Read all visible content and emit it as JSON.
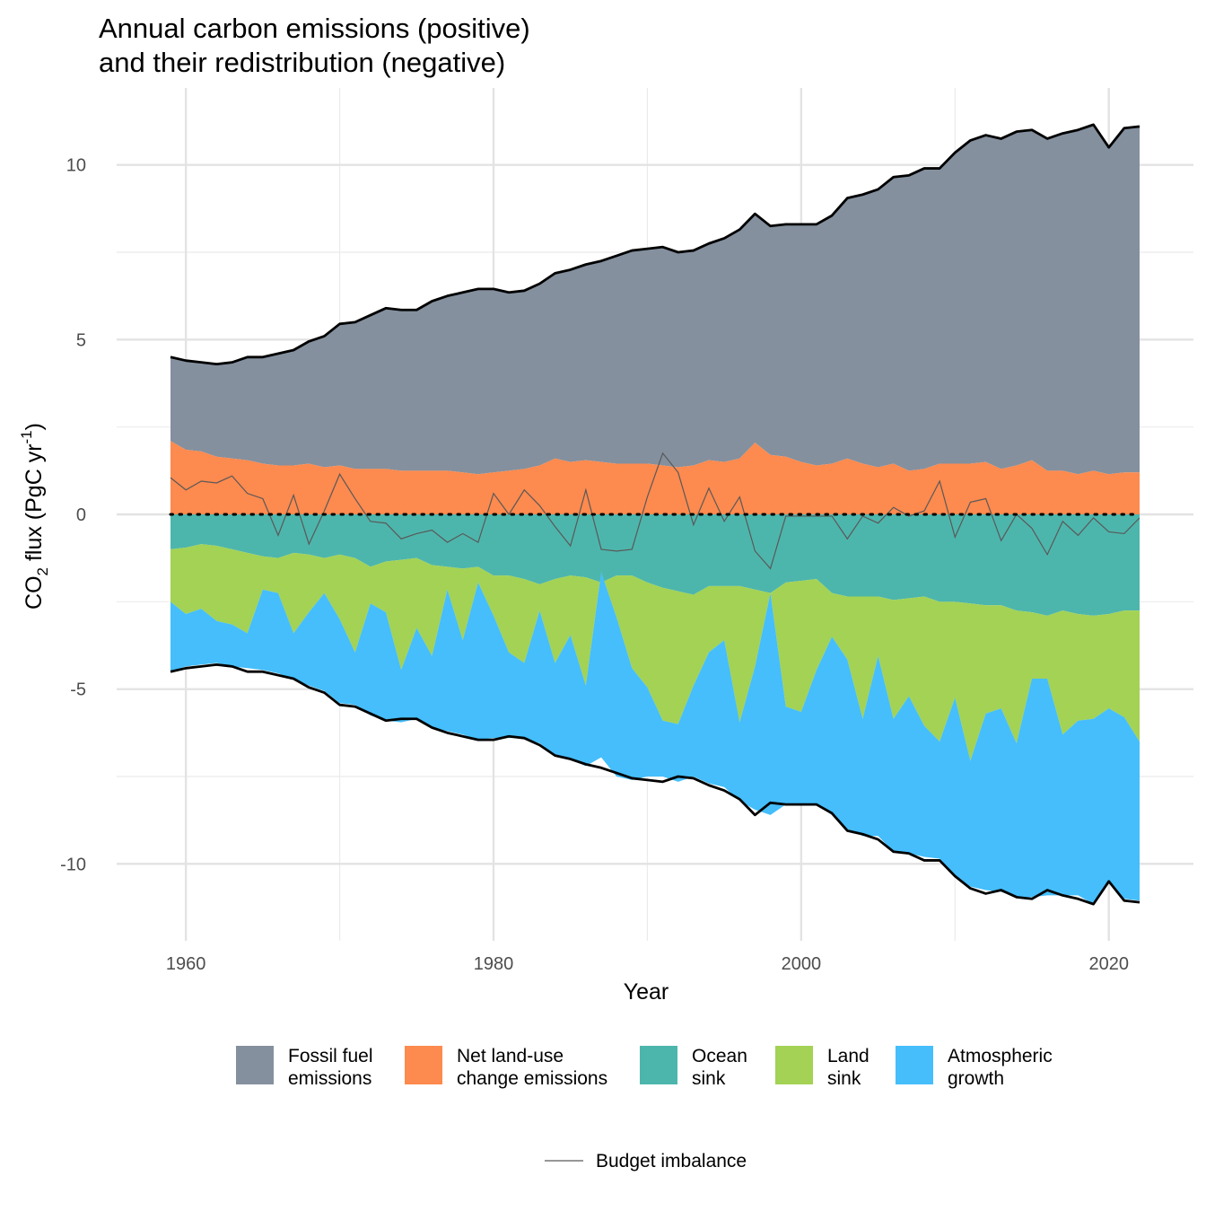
{
  "chart_data": {
    "type": "area",
    "title_lines": [
      "Annual carbon emissions (positive)",
      "and their redistribution (negative)"
    ],
    "xlabel": "Year",
    "ylabel": {
      "main": "CO",
      "sub": "2",
      "rest": " flux (PgC yr",
      "sup": "-1",
      "end": ")"
    },
    "xlim": [
      1955.5,
      2025.5
    ],
    "ylim": [
      -12.2,
      12.2
    ],
    "x_ticks": [
      1960,
      1980,
      2000,
      2020
    ],
    "x_minor_ticks": [
      1970,
      1990,
      2010
    ],
    "y_ticks": [
      10,
      5,
      0,
      -5,
      -10
    ],
    "y_minor_ticks": [
      7.5,
      2.5,
      -2.5,
      -7.5
    ],
    "grid": true,
    "legend_position": "bottom",
    "years": [
      1959,
      1960,
      1961,
      1962,
      1963,
      1964,
      1965,
      1966,
      1967,
      1968,
      1969,
      1970,
      1971,
      1972,
      1973,
      1974,
      1975,
      1976,
      1977,
      1978,
      1979,
      1980,
      1981,
      1982,
      1983,
      1984,
      1985,
      1986,
      1987,
      1988,
      1989,
      1990,
      1991,
      1992,
      1993,
      1994,
      1995,
      1996,
      1997,
      1998,
      1999,
      2000,
      2001,
      2002,
      2003,
      2004,
      2005,
      2006,
      2007,
      2008,
      2009,
      2010,
      2011,
      2012,
      2013,
      2014,
      2015,
      2016,
      2017,
      2018,
      2019,
      2020,
      2021,
      2022
    ],
    "series": [
      {
        "name": "Fossil fuel\nemissions",
        "color": "#84909e",
        "legend_label_lines": [
          "Fossil fuel",
          "emissions"
        ],
        "values": [
          2.4,
          2.55,
          2.55,
          2.65,
          2.75,
          2.95,
          3.05,
          3.2,
          3.3,
          3.5,
          3.75,
          4.05,
          4.2,
          4.4,
          4.6,
          4.6,
          4.6,
          4.85,
          5.0,
          5.15,
          5.3,
          5.25,
          5.1,
          5.1,
          5.2,
          5.3,
          5.5,
          5.6,
          5.75,
          5.95,
          6.1,
          6.15,
          6.25,
          6.15,
          6.15,
          6.2,
          6.4,
          6.55,
          6.55,
          6.55,
          6.65,
          6.8,
          6.9,
          7.1,
          7.45,
          7.7,
          7.95,
          8.2,
          8.45,
          8.6,
          8.45,
          8.9,
          9.25,
          9.35,
          9.45,
          9.55,
          9.45,
          9.5,
          9.65,
          9.85,
          9.9,
          9.35,
          9.85,
          9.9
        ]
      },
      {
        "name": "Net land-use\nchange emissions",
        "color": "#fd8a4e",
        "legend_label_lines": [
          "Net land-use",
          "change emissions"
        ],
        "values": [
          2.1,
          1.85,
          1.8,
          1.65,
          1.6,
          1.55,
          1.45,
          1.4,
          1.4,
          1.45,
          1.35,
          1.4,
          1.3,
          1.3,
          1.3,
          1.25,
          1.25,
          1.25,
          1.25,
          1.2,
          1.15,
          1.2,
          1.25,
          1.3,
          1.4,
          1.6,
          1.5,
          1.55,
          1.5,
          1.45,
          1.45,
          1.45,
          1.4,
          1.35,
          1.4,
          1.55,
          1.5,
          1.6,
          2.05,
          1.7,
          1.65,
          1.5,
          1.4,
          1.45,
          1.6,
          1.45,
          1.35,
          1.45,
          1.25,
          1.3,
          1.45,
          1.45,
          1.45,
          1.5,
          1.3,
          1.4,
          1.55,
          1.25,
          1.25,
          1.15,
          1.25,
          1.15,
          1.2,
          1.2
        ]
      },
      {
        "name": "Ocean\nsink",
        "color": "#4db6ac",
        "legend_label_lines": [
          "Ocean",
          "sink"
        ],
        "values": [
          -1.0,
          -0.95,
          -0.85,
          -0.9,
          -1.0,
          -1.1,
          -1.2,
          -1.25,
          -1.1,
          -1.15,
          -1.25,
          -1.15,
          -1.25,
          -1.5,
          -1.35,
          -1.3,
          -1.25,
          -1.45,
          -1.5,
          -1.55,
          -1.5,
          -1.75,
          -1.75,
          -1.85,
          -2.0,
          -1.85,
          -1.75,
          -1.8,
          -1.95,
          -1.75,
          -1.75,
          -1.95,
          -2.1,
          -2.2,
          -2.3,
          -2.05,
          -2.05,
          -2.05,
          -2.15,
          -2.25,
          -1.95,
          -1.9,
          -1.85,
          -2.25,
          -2.35,
          -2.35,
          -2.35,
          -2.45,
          -2.4,
          -2.35,
          -2.5,
          -2.5,
          -2.55,
          -2.6,
          -2.6,
          -2.75,
          -2.8,
          -2.9,
          -2.75,
          -2.85,
          -2.9,
          -2.85,
          -2.75,
          -2.75
        ]
      },
      {
        "name": "Land\nsink",
        "color": "#a3d255",
        "legend_label_lines": [
          "Land",
          "sink"
        ],
        "values": [
          -1.5,
          -1.9,
          -1.85,
          -2.15,
          -2.15,
          -2.3,
          -0.95,
          -1.0,
          -2.3,
          -1.65,
          -1.0,
          -1.85,
          -2.7,
          -1.05,
          -1.45,
          -3.15,
          -2.0,
          -2.6,
          -0.65,
          -2.05,
          -0.45,
          -1.15,
          -2.2,
          -2.4,
          -0.75,
          -2.4,
          -1.7,
          -3.1,
          0.3,
          -1.2,
          -2.65,
          -3.0,
          -3.8,
          -3.8,
          -2.6,
          -1.9,
          -1.55,
          -3.9,
          -2.2,
          0.0,
          -3.55,
          -3.75,
          -2.6,
          -1.25,
          -1.8,
          -3.5,
          -1.7,
          -3.4,
          -2.8,
          -3.7,
          -4.0,
          -2.75,
          -4.5,
          -3.1,
          -2.95,
          -3.8,
          -1.9,
          -1.8,
          -3.55,
          -3.05,
          -2.95,
          -2.7,
          -3.05,
          -3.75
        ]
      },
      {
        "name": "Atmospheric\ngrowth",
        "color": "#45befb",
        "legend_label_lines": [
          "Atmospheric",
          "growth"
        ],
        "values": [
          -2.0,
          -1.5,
          -1.6,
          -1.2,
          -1.2,
          -1.0,
          -2.3,
          -2.3,
          -1.3,
          -2.1,
          -2.8,
          -2.4,
          -1.5,
          -3.2,
          -3.1,
          -1.5,
          -2.6,
          -2.05,
          -4.05,
          -2.7,
          -4.5,
          -3.5,
          -2.45,
          -2.15,
          -3.8,
          -2.65,
          -3.55,
          -2.3,
          -5.3,
          -4.55,
          -3.2,
          -2.55,
          -1.6,
          -1.65,
          -2.6,
          -3.75,
          -4.2,
          -2.25,
          -4.1,
          -6.35,
          -2.8,
          -2.65,
          -3.85,
          -5.1,
          -4.85,
          -3.35,
          -5.15,
          -3.8,
          -4.5,
          -3.75,
          -3.35,
          -5.1,
          -3.6,
          -5.05,
          -5.25,
          -4.4,
          -6.25,
          -6.2,
          -4.6,
          -5.0,
          -5.3,
          -4.95,
          -5.2,
          -4.55
        ]
      }
    ],
    "emissions_total": [
      4.5,
      4.4,
      4.35,
      4.3,
      4.35,
      4.5,
      4.5,
      4.6,
      4.7,
      4.95,
      5.1,
      5.45,
      5.5,
      5.7,
      5.9,
      5.85,
      5.85,
      6.1,
      6.25,
      6.35,
      6.45,
      6.45,
      6.35,
      6.4,
      6.6,
      6.9,
      7.0,
      7.15,
      7.25,
      7.4,
      7.55,
      7.6,
      7.65,
      7.5,
      7.55,
      7.75,
      7.9,
      8.15,
      8.6,
      8.25,
      8.3,
      8.3,
      8.3,
      8.55,
      9.05,
      9.15,
      9.3,
      9.65,
      9.7,
      9.9,
      9.9,
      10.35,
      10.7,
      10.85,
      10.75,
      10.95,
      11.0,
      10.75,
      10.9,
      11.0,
      11.15,
      10.5,
      11.05,
      11.1
    ],
    "budget_imbalance": {
      "name": "Budget imbalance",
      "color": "#595959",
      "values": [
        1.05,
        0.7,
        0.95,
        0.9,
        1.1,
        0.6,
        0.45,
        -0.6,
        0.55,
        -0.85,
        0.1,
        1.15,
        0.45,
        -0.2,
        -0.25,
        -0.7,
        -0.55,
        -0.45,
        -0.8,
        -0.55,
        -0.8,
        0.6,
        0.0,
        0.7,
        0.25,
        -0.35,
        -0.9,
        0.7,
        -1.0,
        -1.05,
        -1.0,
        0.5,
        1.75,
        1.2,
        -0.3,
        0.75,
        -0.2,
        0.5,
        -1.05,
        -1.55,
        -0.05,
        -0.05,
        -0.05,
        -0.05,
        -0.7,
        -0.05,
        -0.25,
        0.2,
        -0.05,
        0.1,
        0.95,
        -0.65,
        0.35,
        0.45,
        -0.75,
        0.0,
        -0.4,
        -1.15,
        -0.2,
        -0.6,
        -0.1,
        -0.5,
        -0.55,
        -0.1
      ]
    }
  }
}
